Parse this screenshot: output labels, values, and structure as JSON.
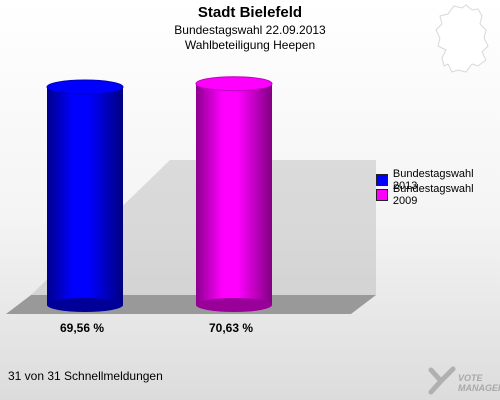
{
  "chart_data": {
    "type": "bar",
    "title": "Stadt Bielefeld",
    "subtitle": [
      "Bundestagswahl 22.09.2013",
      "Wahlbeteiligung Heepen"
    ],
    "categories": [
      "Bundestagswahl 2013",
      "Bundestagswahl 2009"
    ],
    "values": [
      69.56,
      70.63
    ],
    "value_labels": [
      "69,56 %",
      "70,63 %"
    ],
    "colors": [
      "#0000ff",
      "#ff00ff"
    ],
    "ylim": [
      0,
      75
    ],
    "legend": {
      "position": "right",
      "items": [
        {
          "label": "Bundestagswahl 2013",
          "color": "#0000ff"
        },
        {
          "label": "Bundestagswahl 2009",
          "color": "#ff00ff"
        }
      ]
    }
  },
  "footer": "31 von 31 Schnellmeldungen",
  "logo": {
    "line1": "VOTE",
    "line2": "MANAGER"
  }
}
